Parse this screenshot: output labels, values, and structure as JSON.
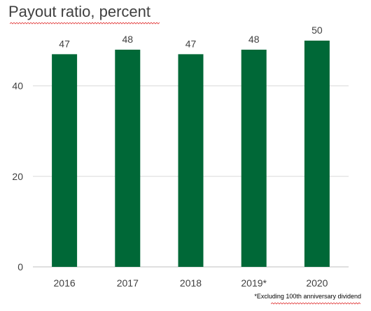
{
  "chart_data": {
    "type": "bar",
    "title": "Payout ratio, percent",
    "categories": [
      "2016",
      "2017",
      "2018",
      "2019*",
      "2020"
    ],
    "values": [
      47,
      48,
      47,
      48,
      50
    ],
    "data_labels": [
      "47",
      "48",
      "47",
      "48",
      "50"
    ],
    "ylim": [
      0,
      50
    ],
    "yticks": [
      0,
      20,
      40
    ],
    "grid": true,
    "legend": "none",
    "bar_color": "#006837",
    "footnote": "*Excluding 100th anniversary dividend"
  }
}
